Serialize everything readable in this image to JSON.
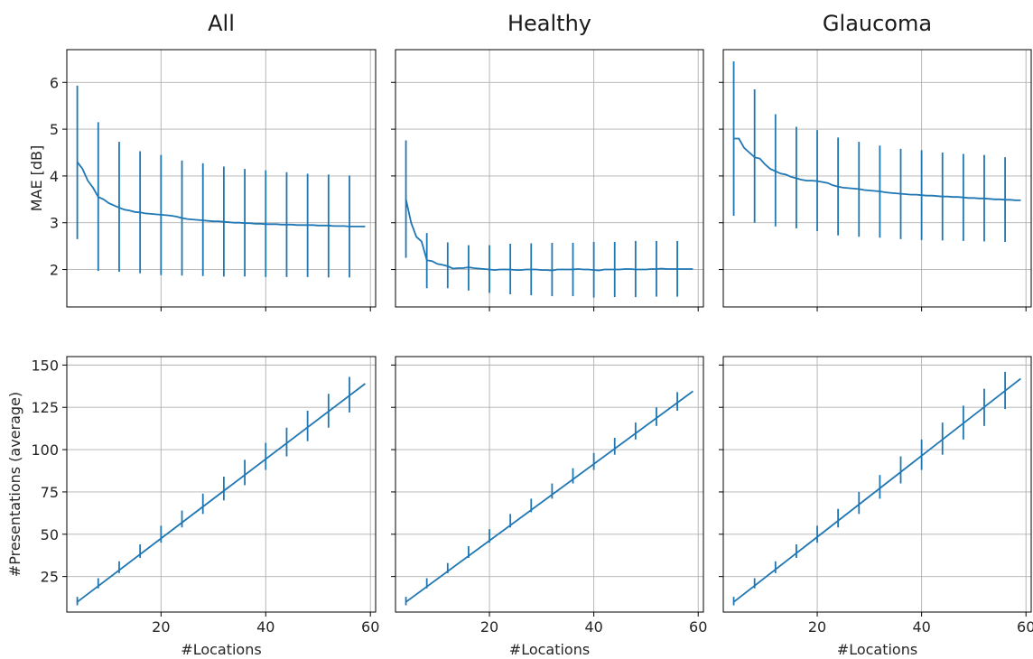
{
  "chart_data": [
    {
      "type": "line",
      "title": "All",
      "xlabel": "",
      "ylabel": "MAE [dB]",
      "xlim": [
        2,
        61
      ],
      "ylim": [
        1.2,
        6.7
      ],
      "xticks": [
        20,
        40,
        60
      ],
      "yticks": [
        2,
        3,
        4,
        5,
        6
      ],
      "grid": true,
      "x": [
        4,
        5,
        6,
        7,
        8,
        9,
        10,
        11,
        12,
        13,
        14,
        15,
        16,
        17,
        18,
        19,
        20,
        21,
        22,
        23,
        24,
        25,
        26,
        27,
        28,
        29,
        30,
        31,
        32,
        33,
        34,
        35,
        36,
        37,
        38,
        39,
        40,
        41,
        42,
        43,
        44,
        45,
        46,
        47,
        48,
        49,
        50,
        51,
        52,
        53,
        54,
        55,
        56,
        57,
        58,
        59
      ],
      "y": [
        4.3,
        4.15,
        3.9,
        3.75,
        3.55,
        3.5,
        3.42,
        3.37,
        3.32,
        3.28,
        3.26,
        3.23,
        3.22,
        3.2,
        3.19,
        3.18,
        3.17,
        3.16,
        3.15,
        3.13,
        3.1,
        3.08,
        3.07,
        3.06,
        3.05,
        3.04,
        3.03,
        3.03,
        3.02,
        3.01,
        3.0,
        3.0,
        2.99,
        2.99,
        2.98,
        2.98,
        2.97,
        2.97,
        2.97,
        2.96,
        2.96,
        2.96,
        2.95,
        2.95,
        2.95,
        2.95,
        2.94,
        2.94,
        2.94,
        2.93,
        2.93,
        2.93,
        2.92,
        2.92,
        2.92,
        2.92
      ],
      "errorbars": [
        {
          "x": 4,
          "low": 2.65,
          "high": 5.93
        },
        {
          "x": 8,
          "low": 1.97,
          "high": 5.15
        },
        {
          "x": 12,
          "low": 1.95,
          "high": 4.73
        },
        {
          "x": 16,
          "low": 1.92,
          "high": 4.53
        },
        {
          "x": 20,
          "low": 1.88,
          "high": 4.45
        },
        {
          "x": 24,
          "low": 1.87,
          "high": 4.33
        },
        {
          "x": 28,
          "low": 1.86,
          "high": 4.27
        },
        {
          "x": 32,
          "low": 1.85,
          "high": 4.2
        },
        {
          "x": 36,
          "low": 1.85,
          "high": 4.15
        },
        {
          "x": 40,
          "low": 1.84,
          "high": 4.12
        },
        {
          "x": 44,
          "low": 1.84,
          "high": 4.08
        },
        {
          "x": 48,
          "low": 1.84,
          "high": 4.05
        },
        {
          "x": 52,
          "low": 1.83,
          "high": 4.03
        },
        {
          "x": 56,
          "low": 1.83,
          "high": 4.01
        }
      ]
    },
    {
      "type": "line",
      "title": "Healthy",
      "xlabel": "",
      "ylabel": "",
      "xlim": [
        2,
        61
      ],
      "ylim": [
        1.2,
        6.7
      ],
      "xticks": [
        20,
        40,
        60
      ],
      "yticks": [
        2,
        3,
        4,
        5,
        6
      ],
      "grid": true,
      "x": [
        4,
        5,
        6,
        7,
        8,
        9,
        10,
        11,
        12,
        13,
        14,
        15,
        16,
        17,
        18,
        19,
        20,
        21,
        22,
        23,
        24,
        25,
        26,
        27,
        28,
        29,
        30,
        31,
        32,
        33,
        34,
        35,
        36,
        37,
        38,
        39,
        40,
        41,
        42,
        43,
        44,
        45,
        46,
        47,
        48,
        49,
        50,
        51,
        52,
        53,
        54,
        55,
        56,
        57,
        58,
        59
      ],
      "y": [
        3.5,
        3.0,
        2.7,
        2.6,
        2.2,
        2.18,
        2.12,
        2.1,
        2.07,
        2.02,
        2.03,
        2.03,
        2.05,
        2.03,
        2.02,
        2.01,
        2.0,
        1.99,
        2.0,
        2.0,
        2.0,
        1.99,
        1.99,
        2.0,
        2.0,
        2.0,
        1.99,
        1.99,
        1.98,
        2.0,
        2.0,
        2.0,
        2.0,
        2.01,
        2.0,
        2.0,
        1.99,
        1.98,
        2.0,
        2.0,
        2.0,
        2.0,
        2.01,
        2.01,
        2.0,
        2.0,
        2.0,
        2.01,
        2.01,
        2.02,
        2.01,
        2.01,
        2.01,
        2.01,
        2.01,
        2.01
      ],
      "errorbars": [
        {
          "x": 4,
          "low": 2.25,
          "high": 4.76
        },
        {
          "x": 8,
          "low": 1.6,
          "high": 2.78
        },
        {
          "x": 12,
          "low": 1.6,
          "high": 2.58
        },
        {
          "x": 16,
          "low": 1.55,
          "high": 2.52
        },
        {
          "x": 20,
          "low": 1.5,
          "high": 2.52
        },
        {
          "x": 24,
          "low": 1.47,
          "high": 2.55
        },
        {
          "x": 28,
          "low": 1.45,
          "high": 2.56
        },
        {
          "x": 32,
          "low": 1.43,
          "high": 2.57
        },
        {
          "x": 36,
          "low": 1.43,
          "high": 2.57
        },
        {
          "x": 40,
          "low": 1.4,
          "high": 2.59
        },
        {
          "x": 44,
          "low": 1.41,
          "high": 2.59
        },
        {
          "x": 48,
          "low": 1.41,
          "high": 2.61
        },
        {
          "x": 52,
          "low": 1.42,
          "high": 2.61
        },
        {
          "x": 56,
          "low": 1.42,
          "high": 2.61
        }
      ]
    },
    {
      "type": "line",
      "title": "Glaucoma",
      "xlabel": "",
      "ylabel": "",
      "xlim": [
        2,
        61
      ],
      "ylim": [
        1.2,
        6.7
      ],
      "xticks": [
        20,
        40,
        60
      ],
      "yticks": [
        2,
        3,
        4,
        5,
        6
      ],
      "grid": true,
      "x": [
        4,
        5,
        6,
        7,
        8,
        9,
        10,
        11,
        12,
        13,
        14,
        15,
        16,
        17,
        18,
        19,
        20,
        21,
        22,
        23,
        24,
        25,
        26,
        27,
        28,
        29,
        30,
        31,
        32,
        33,
        34,
        35,
        36,
        37,
        38,
        39,
        40,
        41,
        42,
        43,
        44,
        45,
        46,
        47,
        48,
        49,
        50,
        51,
        52,
        53,
        54,
        55,
        56,
        57,
        58,
        59
      ],
      "y": [
        4.8,
        4.8,
        4.6,
        4.5,
        4.4,
        4.37,
        4.25,
        4.15,
        4.1,
        4.05,
        4.03,
        3.98,
        3.95,
        3.92,
        3.9,
        3.9,
        3.89,
        3.87,
        3.85,
        3.8,
        3.77,
        3.75,
        3.74,
        3.73,
        3.72,
        3.7,
        3.69,
        3.68,
        3.67,
        3.65,
        3.64,
        3.63,
        3.62,
        3.61,
        3.6,
        3.6,
        3.59,
        3.58,
        3.58,
        3.57,
        3.56,
        3.56,
        3.55,
        3.55,
        3.54,
        3.53,
        3.53,
        3.52,
        3.52,
        3.51,
        3.5,
        3.5,
        3.49,
        3.49,
        3.48,
        3.48
      ],
      "errorbars": [
        {
          "x": 4,
          "low": 3.15,
          "high": 6.45
        },
        {
          "x": 8,
          "low": 3.0,
          "high": 5.85
        },
        {
          "x": 12,
          "low": 2.92,
          "high": 5.32
        },
        {
          "x": 16,
          "low": 2.88,
          "high": 5.05
        },
        {
          "x": 20,
          "low": 2.82,
          "high": 4.98
        },
        {
          "x": 24,
          "low": 2.73,
          "high": 4.82
        },
        {
          "x": 28,
          "low": 2.7,
          "high": 4.73
        },
        {
          "x": 32,
          "low": 2.68,
          "high": 4.65
        },
        {
          "x": 36,
          "low": 2.65,
          "high": 4.58
        },
        {
          "x": 40,
          "low": 2.63,
          "high": 4.55
        },
        {
          "x": 44,
          "low": 2.62,
          "high": 4.5
        },
        {
          "x": 48,
          "low": 2.61,
          "high": 4.47
        },
        {
          "x": 52,
          "low": 2.6,
          "high": 4.45
        },
        {
          "x": 56,
          "low": 2.59,
          "high": 4.4
        }
      ]
    },
    {
      "type": "line",
      "title": "",
      "xlabel": "#Locations",
      "ylabel": "#Presentations (average)",
      "xlim": [
        2,
        61
      ],
      "ylim": [
        4,
        155
      ],
      "xticks": [
        20,
        40,
        60
      ],
      "yticks": [
        25,
        50,
        75,
        100,
        125,
        150
      ],
      "grid": true,
      "x": [
        4,
        59
      ],
      "y": [
        10,
        139
      ],
      "errorbars": [
        {
          "x": 4,
          "low": 8,
          "high": 13
        },
        {
          "x": 8,
          "low": 18,
          "high": 24
        },
        {
          "x": 12,
          "low": 27,
          "high": 34
        },
        {
          "x": 16,
          "low": 36,
          "high": 44
        },
        {
          "x": 20,
          "low": 45,
          "high": 55
        },
        {
          "x": 24,
          "low": 54,
          "high": 64
        },
        {
          "x": 28,
          "low": 62,
          "high": 74
        },
        {
          "x": 32,
          "low": 70,
          "high": 84
        },
        {
          "x": 36,
          "low": 79,
          "high": 94
        },
        {
          "x": 40,
          "low": 88,
          "high": 104
        },
        {
          "x": 44,
          "low": 96,
          "high": 113
        },
        {
          "x": 48,
          "low": 105,
          "high": 123
        },
        {
          "x": 52,
          "low": 113,
          "high": 133
        },
        {
          "x": 56,
          "low": 122,
          "high": 143
        }
      ]
    },
    {
      "type": "line",
      "title": "",
      "xlabel": "#Locations",
      "ylabel": "",
      "xlim": [
        2,
        61
      ],
      "ylim": [
        4,
        155
      ],
      "xticks": [
        20,
        40,
        60
      ],
      "yticks": [
        25,
        50,
        75,
        100,
        125,
        150
      ],
      "grid": true,
      "x": [
        4,
        59
      ],
      "y": [
        10,
        134.5
      ],
      "errorbars": [
        {
          "x": 4,
          "low": 8,
          "high": 13
        },
        {
          "x": 8,
          "low": 18,
          "high": 24
        },
        {
          "x": 12,
          "low": 27,
          "high": 33
        },
        {
          "x": 16,
          "low": 36,
          "high": 43
        },
        {
          "x": 20,
          "low": 45,
          "high": 53
        },
        {
          "x": 24,
          "low": 54,
          "high": 62
        },
        {
          "x": 28,
          "low": 63,
          "high": 71
        },
        {
          "x": 32,
          "low": 71,
          "high": 80
        },
        {
          "x": 36,
          "low": 80,
          "high": 89
        },
        {
          "x": 40,
          "low": 88,
          "high": 98
        },
        {
          "x": 44,
          "low": 97,
          "high": 107
        },
        {
          "x": 48,
          "low": 106,
          "high": 116
        },
        {
          "x": 52,
          "low": 114,
          "high": 125
        },
        {
          "x": 56,
          "low": 123,
          "high": 134
        }
      ]
    },
    {
      "type": "line",
      "title": "",
      "xlabel": "#Locations",
      "ylabel": "",
      "xlim": [
        2,
        61
      ],
      "ylim": [
        4,
        155
      ],
      "xticks": [
        20,
        40,
        60
      ],
      "yticks": [
        25,
        50,
        75,
        100,
        125,
        150
      ],
      "grid": true,
      "x": [
        4,
        59
      ],
      "y": [
        10,
        142
      ],
      "errorbars": [
        {
          "x": 4,
          "low": 8,
          "high": 13
        },
        {
          "x": 8,
          "low": 18,
          "high": 24
        },
        {
          "x": 12,
          "low": 27,
          "high": 34
        },
        {
          "x": 16,
          "low": 36,
          "high": 44
        },
        {
          "x": 20,
          "low": 45,
          "high": 55
        },
        {
          "x": 24,
          "low": 54,
          "high": 65
        },
        {
          "x": 28,
          "low": 62,
          "high": 75
        },
        {
          "x": 32,
          "low": 71,
          "high": 85
        },
        {
          "x": 36,
          "low": 80,
          "high": 96
        },
        {
          "x": 40,
          "low": 88,
          "high": 106
        },
        {
          "x": 44,
          "low": 97,
          "high": 116
        },
        {
          "x": 48,
          "low": 106,
          "high": 126
        },
        {
          "x": 52,
          "low": 114,
          "high": 136
        },
        {
          "x": 56,
          "low": 124,
          "high": 146
        }
      ]
    }
  ],
  "colors": {
    "series": "#1f77b4",
    "grid": "#b0b0b0",
    "frame": "#000000",
    "text": "#262626"
  }
}
